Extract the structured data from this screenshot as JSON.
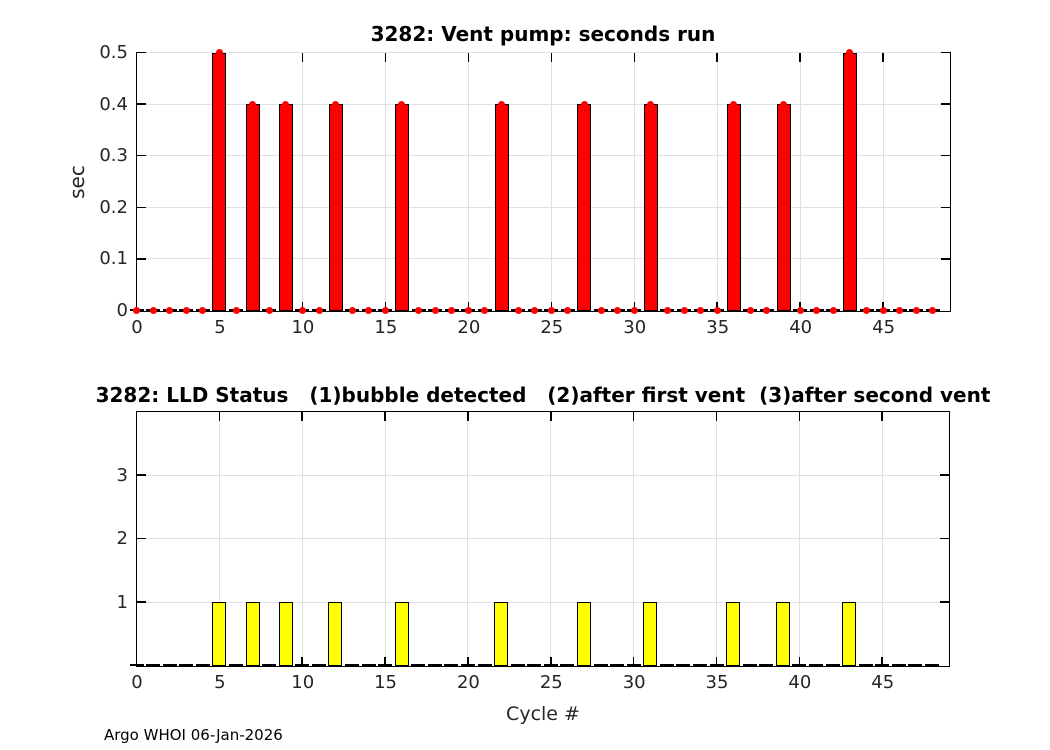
{
  "figure": {
    "footer": "Argo WHOI 06-Jan-2026",
    "background": "#ffffff"
  },
  "colors": {
    "grid": "#e0e0e0",
    "axis": "#000000",
    "tick_text": "#262626",
    "title_text": "#000000"
  },
  "chart_data": [
    {
      "type": "bar",
      "title": "3282: Vent pump: seconds run",
      "xlabel": "",
      "ylabel": "sec",
      "xlim": [
        0,
        49
      ],
      "ylim": [
        0,
        0.5
      ],
      "xticks": [
        0,
        5,
        10,
        15,
        20,
        25,
        30,
        35,
        40,
        45
      ],
      "yticks": [
        0,
        0.1,
        0.2,
        0.3,
        0.4,
        0.5
      ],
      "ytick_labels": [
        "0",
        "0.1",
        "0.2",
        "0.3",
        "0.4",
        "0.5"
      ],
      "grid": true,
      "bar_color": "#ff0000",
      "bar_edge_color": "#000000",
      "markers": true,
      "marker_color": "#ff0000",
      "x": [
        0,
        1,
        2,
        3,
        4,
        5,
        6,
        7,
        8,
        9,
        10,
        11,
        12,
        13,
        14,
        15,
        16,
        17,
        18,
        19,
        20,
        21,
        22,
        23,
        24,
        25,
        26,
        27,
        28,
        29,
        30,
        31,
        32,
        33,
        34,
        35,
        36,
        37,
        38,
        39,
        40,
        41,
        42,
        43,
        44,
        45,
        46,
        47,
        48
      ],
      "values": [
        0,
        0,
        0,
        0,
        0,
        0.5,
        0,
        0.4,
        0,
        0.4,
        0,
        0,
        0.4,
        0,
        0,
        0,
        0.4,
        0,
        0,
        0,
        0,
        0,
        0.4,
        0,
        0,
        0,
        0,
        0.4,
        0,
        0,
        0,
        0.4,
        0,
        0,
        0,
        0,
        0.4,
        0,
        0,
        0.4,
        0,
        0,
        0,
        0.5,
        0,
        0,
        0,
        0,
        0
      ]
    },
    {
      "type": "bar",
      "title": "3282: LLD Status   (1)bubble detected   (2)after first vent  (3)after second vent",
      "xlabel": "Cycle #",
      "ylabel": "",
      "xlim": [
        0,
        49
      ],
      "ylim": [
        0,
        4
      ],
      "xticks": [
        0,
        5,
        10,
        15,
        20,
        25,
        30,
        35,
        40,
        45
      ],
      "yticks": [
        1,
        2,
        3
      ],
      "ytick_labels": [
        "1",
        "2",
        "3"
      ],
      "grid": true,
      "bar_color": "#ffff00",
      "bar_edge_color": "#000000",
      "markers": false,
      "marker_color": "#ff0000",
      "x": [
        0,
        1,
        2,
        3,
        4,
        5,
        6,
        7,
        8,
        9,
        10,
        11,
        12,
        13,
        14,
        15,
        16,
        17,
        18,
        19,
        20,
        21,
        22,
        23,
        24,
        25,
        26,
        27,
        28,
        29,
        30,
        31,
        32,
        33,
        34,
        35,
        36,
        37,
        38,
        39,
        40,
        41,
        42,
        43,
        44,
        45,
        46,
        47,
        48
      ],
      "values": [
        0,
        0,
        0,
        0,
        0,
        1,
        0,
        1,
        0,
        1,
        0,
        0,
        1,
        0,
        0,
        0,
        1,
        0,
        0,
        0,
        0,
        0,
        1,
        0,
        0,
        0,
        0,
        1,
        0,
        0,
        0,
        1,
        0,
        0,
        0,
        0,
        1,
        0,
        0,
        1,
        0,
        0,
        0,
        1,
        0,
        0,
        0,
        0,
        0
      ]
    }
  ]
}
